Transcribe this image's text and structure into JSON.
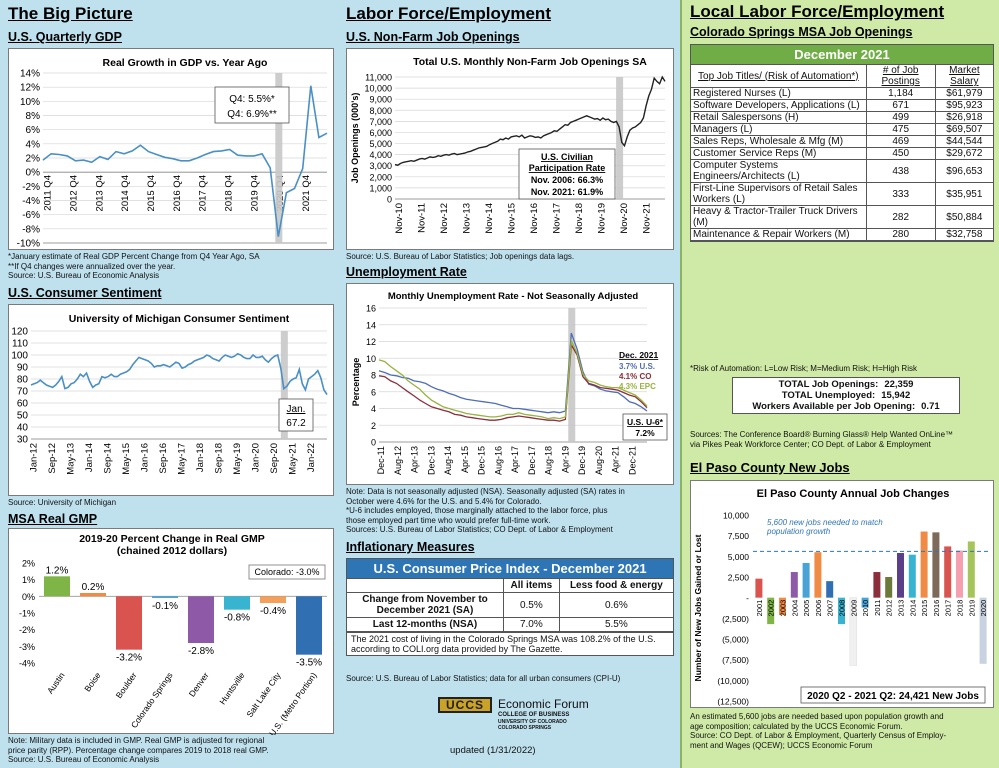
{
  "col1": {
    "title": "The Big Picture",
    "gdp": {
      "heading": "U.S. Quarterly GDP",
      "notes": [
        "*January estimate of Real GDP Percent Change from Q4 Year Ago, SA",
        "**If Q4 changes were annualized over the year.",
        "Source: U.S. Bureau of Economic Analysis"
      ]
    },
    "sentiment": {
      "heading": "U.S. Consumer Sentiment",
      "source": "Source: University of Michigan"
    },
    "gmp": {
      "heading": "MSA Real GMP",
      "notes": [
        "Note: Military data is included in GMP. Real GMP is adjusted for regional",
        "price parity (RPP). Percentage change compares 2019 to 2018 real GMP.",
        "Source: U.S. Bureau of Economic Analysis"
      ]
    }
  },
  "col2": {
    "title": "Labor Force/Employment",
    "openings": {
      "heading": "U.S. Non-Farm Job Openings",
      "source": "Source: U.S. Bureau of Labor Statistics; Job openings data lags."
    },
    "unemp": {
      "heading": "Unemployment Rate",
      "notes": [
        "Note: Data is not seasonally adjusted (NSA). Seasonally adjusted (SA) rates in",
        "October were 4.6% for the U.S. and 5.4% for Colorado.",
        "*U-6 includes employed, those marginally attached to the labor force, plus",
        "those employed part time who would prefer full-time work.",
        "Sources: U.S. Bureau of Labor Statistics; CO Dept. of Labor & Employment"
      ]
    },
    "cpi": {
      "heading": "Inflationary Measures",
      "title": "U.S. Consumer Price Index - December 2021",
      "col_all": "All items",
      "col_core": "Less food & energy",
      "row1_label": "Change from November to December 2021 (SA)",
      "row1_all": "0.5%",
      "row1_core": "0.6%",
      "row2_label": "Last 12-months (NSA)",
      "row2_all": "7.0%",
      "row2_core": "5.5%",
      "coli_note": "The 2021 cost of living in the Colorado Springs MSA was 108.2% of the U.S. according to COLI.org data provided by The Gazette.",
      "source": "Source: U.S. Bureau of Labor Statistics; data for all urban consumers (CPI-U)"
    },
    "logo": {
      "mark": "UCCS",
      "name": "Economic Forum",
      "line1": "COLLEGE OF BUSINESS",
      "line2": "UNIVERSITY OF COLORADO",
      "line3": "COLORADO SPRINGS"
    },
    "updated": "updated (1/31/2022)"
  },
  "col3": {
    "title": "Local Labor Force/Employment",
    "sub": "Colorado Springs MSA Job Openings",
    "month": "December 2021",
    "headers": [
      "Top Job Titles/ (Risk of Automation*)",
      "# of Job Postings",
      "Market Salary"
    ],
    "rows": [
      {
        "title": "Registered Nurses (L)",
        "postings": "1,184",
        "salary": "$61,979"
      },
      {
        "title": "Software Developers, Applications (L)",
        "postings": "671",
        "salary": "$95,923"
      },
      {
        "title": "Retail Salespersons (H)",
        "postings": "499",
        "salary": "$26,918"
      },
      {
        "title": "Managers (L)",
        "postings": "475",
        "salary": "$69,507"
      },
      {
        "title": "Sales Reps, Wholesale & Mfg (M)",
        "postings": "469",
        "salary": "$44,544"
      },
      {
        "title": "Customer Service Reps (M)",
        "postings": "450",
        "salary": "$29,672"
      },
      {
        "title": "Computer Systems Engineers/Architects (L)",
        "postings": "438",
        "salary": "$96,653"
      },
      {
        "title": "First-Line Supervisors of Retail Sales Workers (L)",
        "postings": "333",
        "salary": "$35,951"
      },
      {
        "title": "Heavy & Tractor-Trailer Truck Drivers (M)",
        "postings": "282",
        "salary": "$50,884"
      },
      {
        "title": "Maintenance & Repair Workers (M)",
        "postings": "280",
        "salary": "$32,758"
      }
    ],
    "risk_note": "*Risk of Automation: L=Low Risk; M=Medium Risk; H=High Risk",
    "totals": [
      {
        "label": "TOTAL Job Openings:",
        "value": "22,359"
      },
      {
        "label": "TOTAL Unemployed:",
        "value": "15,942"
      },
      {
        "label": "Workers Available per Job Opening:",
        "value": "0.71"
      }
    ],
    "sources": [
      "Sources: The Conference Board® Burning Glass® Help Wanted OnLine™",
      "via Pikes Peak Workforce Center; CO Dept. of Labor & Employment"
    ],
    "elpaso": {
      "heading": "El Paso County New Jobs",
      "notes": [
        "An estimated 5,600 jobs are needed based upon population growth and",
        "age composition; calculated by the UCCS Economic Forum.",
        "Source: CO Dept. of Labor & Employment, Quarterly Census of Employ-",
        "ment and Wages (QCEW); UCCS Economic Forum"
      ]
    }
  },
  "chart_data": [
    {
      "id": "gdp",
      "type": "line",
      "title": "Real Growth in GDP vs. Year Ago",
      "x_labels": [
        "2011 Q4",
        "2012 Q4",
        "2013 Q4",
        "2014 Q4",
        "2015 Q4",
        "2016 Q4",
        "2017 Q4",
        "2018 Q4",
        "2019 Q4",
        "2020 Q4",
        "2021 Q4"
      ],
      "ylim": [
        -10,
        14
      ],
      "yticks": [
        "14%",
        "12%",
        "10%",
        "8%",
        "6%",
        "4%",
        "2%",
        "0%",
        "-2%",
        "-4%",
        "-6%",
        "-8%",
        "-10%"
      ],
      "values": [
        1.7,
        2.6,
        2.5,
        2.3,
        1.6,
        1.7,
        1.4,
        2.2,
        1.8,
        2.9,
        2.6,
        3.0,
        3.8,
        2.9,
        2.5,
        2.1,
        1.9,
        1.6,
        1.6,
        2.0,
        2.5,
        2.9,
        3.0,
        3.2,
        2.4,
        2.3,
        2.3,
        2.6,
        0.6,
        -9.1,
        -2.9,
        -2.3,
        0.5,
        12.2,
        4.9,
        5.5
      ],
      "recession_index": 29,
      "annotation": [
        "Q4: 5.5%*",
        "Q4: 6.9%**"
      ]
    },
    {
      "id": "sentiment",
      "type": "line",
      "title": "University of Michigan Consumer Sentiment",
      "x_labels": [
        "Jan-12",
        "Sep-12",
        "May-13",
        "Jan-14",
        "Sep-14",
        "May-15",
        "Jan-16",
        "Sep-16",
        "May-17",
        "Jan-18",
        "Sep-18",
        "May-19",
        "Jan-20",
        "Sep-20",
        "May-21",
        "Jan-22"
      ],
      "ylim": [
        30,
        120
      ],
      "yticks": [
        "120",
        "110",
        "100",
        "90",
        "80",
        "70",
        "60",
        "50",
        "40",
        "30"
      ],
      "values": [
        75,
        76,
        77,
        79,
        77,
        75,
        74,
        73,
        75,
        78,
        82,
        72,
        73,
        76,
        77,
        80,
        84,
        82,
        85,
        78,
        73,
        75,
        76,
        82,
        81,
        82,
        84,
        82,
        82,
        84,
        85,
        86,
        88,
        92,
        95,
        98,
        97,
        96,
        95,
        93,
        90,
        91,
        91,
        92,
        91,
        90,
        92,
        94,
        93,
        89,
        90,
        92,
        93,
        95,
        96,
        97,
        98,
        100,
        99,
        97,
        96,
        95,
        98,
        100,
        99,
        98,
        99,
        101,
        100,
        98,
        97,
        97,
        100,
        98,
        98,
        99,
        96,
        94,
        97,
        99,
        100,
        89,
        72,
        74,
        78,
        80,
        81,
        88,
        76,
        71,
        80,
        82,
        84,
        87,
        81,
        71,
        67
      ],
      "recession_index": 82,
      "annotation": [
        "Jan.",
        "67.2"
      ]
    },
    {
      "id": "gmp",
      "type": "bar",
      "title": "2019-20 Percent Change in Real GMP (chained 2012 dollars)",
      "categories": [
        "Austin",
        "Boise",
        "Boulder",
        "Colorado Springs",
        "Denver",
        "Huntsville",
        "Salt Lake City",
        "U.S. (Metro Portion)"
      ],
      "values": [
        1.2,
        0.2,
        -3.2,
        -0.1,
        -2.8,
        -0.8,
        -0.4,
        -3.5
      ],
      "labels": [
        "1.2%",
        "0.2%",
        "-3.2%",
        "-0.1%",
        "-2.8%",
        "-0.8%",
        "-0.4%",
        "-3.5%"
      ],
      "colors": [
        "#7fb446",
        "#f08b46",
        "#d9544f",
        "#4aa3d7",
        "#8e5aa8",
        "#39b4d0",
        "#f5a05a",
        "#2f6fb2"
      ],
      "ylim": [
        -4,
        2
      ],
      "yticks": [
        "2%",
        "1%",
        "0%",
        "-1%",
        "-2%",
        "-3%",
        "-4%"
      ],
      "legend": "Colorado: -3.0%"
    },
    {
      "id": "openings",
      "type": "line",
      "title": "Total U.S. Monthly Non-Farm Job Openings SA",
      "ylabel": "Job Openings (000's)",
      "x_labels": [
        "Nov-10",
        "Nov-11",
        "Nov-12",
        "Nov-13",
        "Nov-14",
        "Nov-15",
        "Nov-16",
        "Nov-17",
        "Nov-18",
        "Nov-19",
        "Nov-20",
        "Nov-21"
      ],
      "ylim": [
        0,
        11000
      ],
      "yticks": [
        "11,000",
        "10,000",
        "9,000",
        "8,000",
        "7,000",
        "6,000",
        "5,000",
        "4,000",
        "3,000",
        "2,000",
        "1,000",
        "0"
      ],
      "values": [
        3100,
        3050,
        3200,
        3300,
        3350,
        3400,
        3450,
        3400,
        3500,
        3600,
        3650,
        3600,
        3700,
        3800,
        3750,
        3800,
        3900,
        3850,
        3950,
        4000,
        3950,
        4050,
        4100,
        4000,
        4050,
        4100,
        4150,
        4250,
        4300,
        4400,
        4500,
        4600,
        4650,
        4700,
        4750,
        4900,
        5000,
        5100,
        5200,
        5400,
        5350,
        5500,
        5400,
        5600,
        5650,
        5700,
        5600,
        5750,
        5500,
        5600,
        5700,
        5650,
        5550,
        5600,
        5500,
        5700,
        5800,
        5900,
        6000,
        6150,
        6100,
        6300,
        6500,
        6700,
        6650,
        6900,
        7000,
        7100,
        7200,
        7300,
        7400,
        7500,
        7400,
        7300,
        7200,
        7250,
        7100,
        7300,
        7150,
        7200,
        7000,
        6900,
        7000,
        6500,
        5100,
        4800,
        5600,
        6200,
        6400,
        6500,
        6700,
        6900,
        7300,
        8400,
        9300,
        9900,
        10900,
        10600,
        10400,
        11000,
        10600
      ],
      "recession_index": 83,
      "annotation": [
        "U.S. Civilian",
        "Participation Rate",
        "Nov. 2006: 66.3%",
        "Nov. 2021: 61.9%"
      ]
    },
    {
      "id": "unemp",
      "type": "line",
      "title": "Monthly Unemployment Rate - Not Seasonally Adjusted",
      "ylabel": "Percentage",
      "x_labels": [
        "Dec-11",
        "Aug-12",
        "Apr-13",
        "Dec-13",
        "Aug-14",
        "Apr-15",
        "Dec-15",
        "Aug-16",
        "Apr-17",
        "Dec-17",
        "Aug-18",
        "Apr-19",
        "Dec-19",
        "Aug-20",
        "Apr-21",
        "Dec-21"
      ],
      "ylim": [
        0,
        16
      ],
      "yticks": [
        "16",
        "14",
        "12",
        "10",
        "8",
        "6",
        "4",
        "2",
        "0"
      ],
      "series": [
        {
          "name": "3.7% U.S.",
          "color": "#4f6db8",
          "values": [
            8.5,
            8.3,
            8.0,
            7.9,
            7.7,
            7.6,
            7.3,
            7.2,
            7.0,
            6.6,
            6.3,
            6.1,
            5.8,
            5.6,
            5.3,
            5.1,
            5.0,
            4.9,
            4.8,
            4.7,
            4.6,
            4.4,
            4.2,
            4.0,
            4.0,
            3.9,
            3.8,
            3.7,
            3.6,
            3.5,
            3.6,
            3.5,
            3.7,
            13.0,
            11.1,
            8.4,
            6.9,
            6.7,
            6.3,
            6.1,
            6.0,
            5.9,
            5.4,
            4.8,
            4.6,
            4.2,
            3.7
          ]
        },
        {
          "name": "4.1% CO",
          "color": "#8b2f3c",
          "values": [
            7.9,
            7.8,
            7.3,
            7.0,
            6.5,
            6.0,
            5.5,
            5.0,
            4.6,
            4.2,
            4.0,
            3.8,
            3.6,
            3.3,
            3.2,
            3.0,
            2.9,
            2.8,
            2.7,
            2.6,
            2.6,
            2.7,
            2.9,
            3.0,
            3.1,
            3.0,
            2.9,
            2.8,
            2.7,
            2.6,
            2.6,
            2.5,
            2.7,
            11.6,
            10.4,
            7.8,
            7.0,
            6.8,
            6.5,
            6.4,
            6.3,
            6.2,
            5.9,
            5.6,
            5.4,
            4.8,
            4.1
          ]
        },
        {
          "name": "4.3% EPC",
          "color": "#98b33f",
          "values": [
            9.8,
            9.6,
            9.0,
            8.5,
            8.0,
            7.3,
            6.8,
            6.3,
            5.6,
            5.0,
            4.6,
            4.2,
            4.0,
            3.8,
            3.6,
            3.4,
            3.3,
            3.2,
            3.1,
            3.0,
            3.0,
            3.1,
            3.3,
            3.3,
            3.5,
            3.3,
            3.2,
            3.1,
            3.0,
            2.8,
            2.9,
            2.8,
            3.0,
            12.1,
            10.6,
            8.1,
            7.3,
            7.1,
            6.8,
            6.6,
            6.5,
            6.5,
            6.2,
            5.9,
            5.6,
            5.0,
            4.3
          ]
        }
      ],
      "recession_index": 33,
      "legend_title": "Dec. 2021",
      "u6": [
        "U.S. U-6*",
        "7.2%"
      ]
    },
    {
      "id": "elpaso",
      "type": "bar",
      "title": "El Paso County Annual Job Changes",
      "ylabel": "Number of New Jobs Gained or Lost",
      "categories": [
        "2001",
        "2002",
        "2003",
        "2004",
        "2005",
        "2006",
        "2007",
        "2008",
        "2009",
        "2010",
        "2011",
        "2012",
        "2013",
        "2014",
        "2015",
        "2016",
        "2017",
        "2018",
        "2019",
        "2020"
      ],
      "values": [
        2300,
        -3200,
        -2100,
        3100,
        4200,
        5500,
        2000,
        -3200,
        -8200,
        -1200,
        3100,
        2500,
        5400,
        5200,
        8000,
        7900,
        6200,
        5700,
        6800,
        -8000
      ],
      "colors": [
        "#d9544f",
        "#7fb446",
        "#f08b46",
        "#8e5aa8",
        "#4aa3d7",
        "#f08b46",
        "#2f6fb2",
        "#39b4d0",
        "#f0f0f0",
        "#4aa3d7",
        "#8b2f3c",
        "#6a7a3a",
        "#5b3f8a",
        "#39b4d0",
        "#f08b46",
        "#7d6a5a",
        "#d9544f",
        "#f5a0b0",
        "#a6c45c",
        "#c8d2e0"
      ],
      "ylim": [
        -12500,
        10000
      ],
      "yticks": [
        "10,000",
        "7,500",
        "5,000",
        "2,500",
        "-",
        "(2,500)",
        "(5,000)",
        "(7,500)",
        "(10,000)",
        "(12,500)"
      ],
      "target": 5600,
      "target_label": [
        "5,600 new jobs needed to match",
        "population growth"
      ],
      "total": "2020 Q2 - 2021 Q2: 24,421 New Jobs"
    }
  ]
}
